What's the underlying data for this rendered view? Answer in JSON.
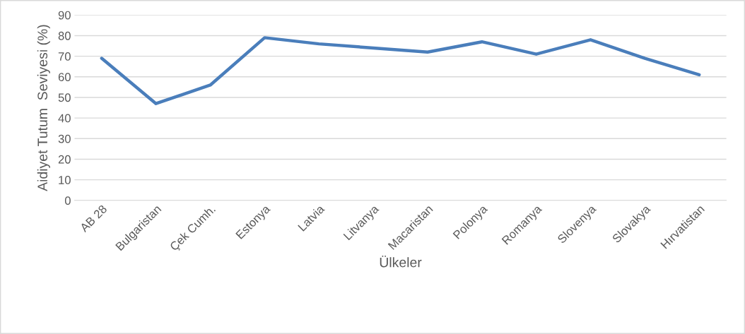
{
  "chart_data": {
    "type": "line",
    "xlabel": "Ülkeler",
    "ylabel": "Aidiyet Tutum  Seviyesi (%)",
    "categories": [
      "AB 28",
      "Bulgaristan",
      "Çek Cumh.",
      "Estonya",
      "Latvia",
      "Litvanya",
      "Macaristan",
      "Polonya",
      "Romanya",
      "Slovenya",
      "Slovakya",
      "Hırvatistan"
    ],
    "series": [
      {
        "color": "#4a7ebb",
        "values": [
          69,
          47,
          56,
          79,
          76,
          74,
          72,
          77,
          71,
          78,
          69,
          61
        ]
      }
    ],
    "ylim": [
      0,
      90
    ],
    "yticks": [
      0,
      10,
      20,
      30,
      40,
      50,
      60,
      70,
      80,
      90
    ],
    "grid": "y",
    "marker": "none",
    "line_style": "solid"
  }
}
